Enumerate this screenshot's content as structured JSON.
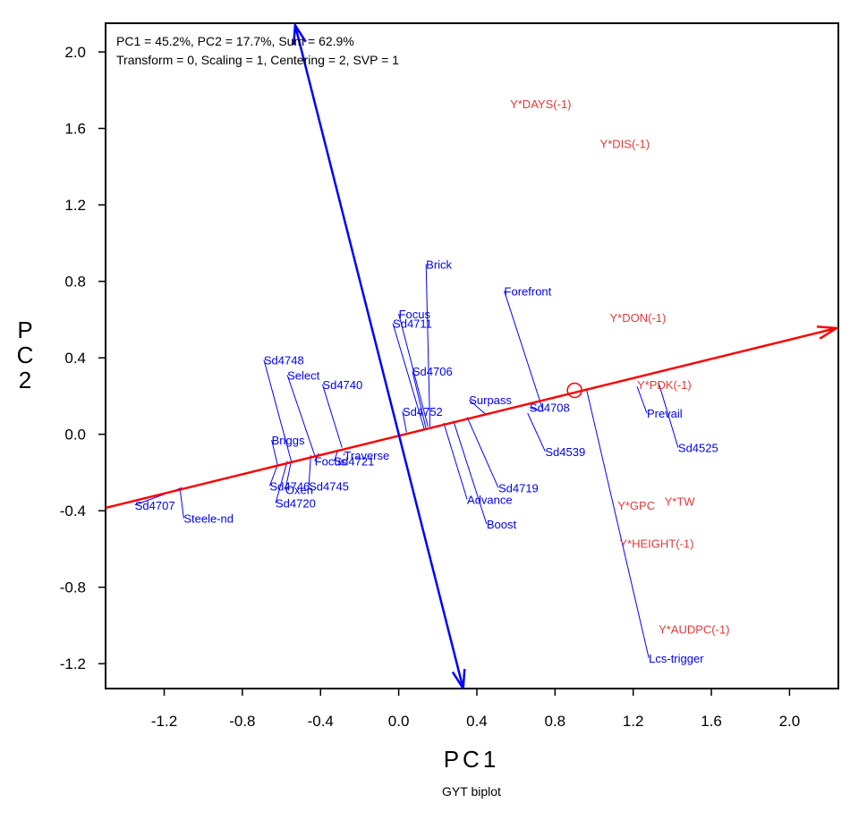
{
  "chart_data": {
    "type": "scatter",
    "title": "",
    "caption": "GYT biplot",
    "xlabel": "PC1",
    "ylabel": "PC2",
    "xlim": [
      -1.5,
      2.25
    ],
    "ylim": [
      -1.33,
      2.15
    ],
    "x_ticks": [
      "-1.2",
      "-0.8",
      "-0.4",
      "0.0",
      "0.4",
      "0.8",
      "1.2",
      "1.6",
      "2.0"
    ],
    "y_ticks": [
      "2.0",
      "1.6",
      "1.2",
      "0.8",
      "0.4",
      "0.0",
      "-0.4",
      "-0.8",
      "-1.2"
    ],
    "info_lines": [
      "PC1 = 45.2%, PC2 = 17.7%, Sum = 62.9%",
      "Transform = 0, Scaling = 1, Centering = 2, SVP = 1"
    ],
    "colors": {
      "genotype": "#0000ee",
      "trait": "#e33a3a",
      "ata_axis": "#ff0000",
      "ata_ortho": "#0000ff"
    },
    "ata_axis": {
      "start": [
        -1.5,
        -0.385
      ],
      "end": [
        2.24,
        0.555
      ]
    },
    "ata_ortho": {
      "start": [
        -0.53,
        2.14
      ],
      "end": [
        0.33,
        -1.33
      ]
    },
    "average_point": {
      "x": 0.9,
      "y": 0.23
    },
    "genotypes": [
      {
        "name": "Brick",
        "x": 0.14,
        "y": 0.89,
        "foot": [
          0.16,
          0.04
        ]
      },
      {
        "name": "Forefront",
        "x": 0.54,
        "y": 0.75,
        "foot": [
          0.74,
          0.12
        ]
      },
      {
        "name": "Focus",
        "x": 0.0,
        "y": 0.63,
        "foot": [
          0.15,
          0.04
        ]
      },
      {
        "name": "Sd4711",
        "x": -0.03,
        "y": 0.58,
        "foot": [
          0.13,
          0.03
        ]
      },
      {
        "name": "Sd4706",
        "x": 0.07,
        "y": 0.33,
        "foot": [
          0.14,
          0.03
        ]
      },
      {
        "name": "Sd4748",
        "x": -0.69,
        "y": 0.39,
        "foot": [
          -0.55,
          -0.14
        ]
      },
      {
        "name": "Select",
        "x": -0.57,
        "y": 0.31,
        "foot": [
          -0.43,
          -0.11
        ]
      },
      {
        "name": "Sd4740",
        "x": -0.39,
        "y": 0.26,
        "foot": [
          -0.29,
          -0.07
        ]
      },
      {
        "name": "Surpass",
        "x": 0.36,
        "y": 0.18,
        "foot": [
          0.45,
          0.1
        ]
      },
      {
        "name": "Sd4708",
        "x": 0.67,
        "y": 0.14,
        "foot": [
          0.73,
          0.12
        ]
      },
      {
        "name": "Sd4752",
        "x": 0.02,
        "y": 0.12,
        "foot": [
          0.04,
          0.01
        ]
      },
      {
        "name": "Prevail",
        "x": 1.27,
        "y": 0.11,
        "foot": [
          1.22,
          0.25
        ]
      },
      {
        "name": "Sd4525",
        "x": 1.43,
        "y": -0.07,
        "foot": [
          1.33,
          0.27
        ]
      },
      {
        "name": "Sd4539",
        "x": 0.75,
        "y": -0.09,
        "foot": [
          0.66,
          0.11
        ]
      },
      {
        "name": "Briggs",
        "x": -0.65,
        "y": -0.03,
        "foot": [
          -0.62,
          -0.16
        ]
      },
      {
        "name": "Traverse",
        "x": -0.28,
        "y": -0.11,
        "foot": [
          -0.28,
          -0.1
        ]
      },
      {
        "name": "Focus",
        "x": -0.43,
        "y": -0.14,
        "foot": [
          -0.41,
          -0.1
        ]
      },
      {
        "name": "Sd4721",
        "x": -0.33,
        "y": -0.14,
        "foot": [
          -0.31,
          -0.08
        ]
      },
      {
        "name": "Sd4719",
        "x": 0.51,
        "y": -0.28,
        "foot": [
          0.35,
          0.09
        ]
      },
      {
        "name": "Sd4746",
        "x": -0.66,
        "y": -0.27,
        "foot": [
          -0.62,
          -0.16
        ]
      },
      {
        "name": "Sd4745",
        "x": -0.46,
        "y": -0.27,
        "foot": [
          -0.45,
          -0.11
        ]
      },
      {
        "name": "Oxen",
        "x": -0.58,
        "y": -0.29,
        "foot": [
          -0.55,
          -0.14
        ]
      },
      {
        "name": "Advance",
        "x": 0.35,
        "y": -0.34,
        "foot": [
          0.23,
          0.06
        ]
      },
      {
        "name": "Sd4720",
        "x": -0.63,
        "y": -0.36,
        "foot": [
          -0.57,
          -0.14
        ]
      },
      {
        "name": "Sd4707",
        "x": -1.35,
        "y": -0.37,
        "foot": [
          -1.11,
          -0.28
        ]
      },
      {
        "name": "Steele-nd",
        "x": -1.1,
        "y": -0.44,
        "foot": [
          -1.12,
          -0.28
        ]
      },
      {
        "name": "Boost",
        "x": 0.45,
        "y": -0.47,
        "foot": [
          0.28,
          0.07
        ]
      },
      {
        "name": "Lcs-trigger",
        "x": 1.28,
        "y": -1.17,
        "foot": [
          0.96,
          0.24
        ]
      }
    ],
    "traits": [
      {
        "name": "Y*DAYS(-1)",
        "x": 0.57,
        "y": 1.73
      },
      {
        "name": "Y*DIS(-1)",
        "x": 1.03,
        "y": 1.52
      },
      {
        "name": "Y*DON(-1)",
        "x": 1.08,
        "y": 0.61
      },
      {
        "name": "Y*PDK(-1)",
        "x": 1.22,
        "y": 0.26
      },
      {
        "name": "Y*TW",
        "x": 1.36,
        "y": -0.35
      },
      {
        "name": "Y*GPC",
        "x": 1.12,
        "y": -0.37
      },
      {
        "name": "Y*HEIGHT(-1)",
        "x": 1.13,
        "y": -0.57
      },
      {
        "name": "Y*AUDPC(-1)",
        "x": 1.33,
        "y": -1.02
      }
    ]
  }
}
